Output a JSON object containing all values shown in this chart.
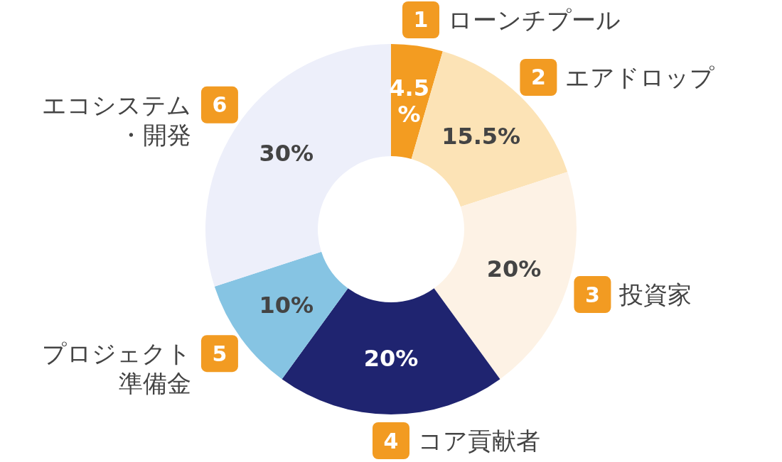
{
  "chart_data": {
    "type": "donut",
    "categories": [
      "ローンチプール",
      "エアドロップ",
      "投資家",
      "コア貢献者",
      "プロジェクト準備金",
      "エコシステム・開発"
    ],
    "values": [
      4.5,
      15.5,
      20,
      20,
      10,
      30
    ],
    "colors": [
      "#f39c21",
      "#fce3b6",
      "#fdf2e5",
      "#1f2470",
      "#86c4e3",
      "#edeffa"
    ],
    "value_labels": [
      "4.5%",
      "15.5%",
      "20%",
      "20%",
      "10%",
      "30%"
    ],
    "annotations": [
      "1",
      "2",
      "3",
      "4",
      "5",
      "6"
    ]
  }
}
